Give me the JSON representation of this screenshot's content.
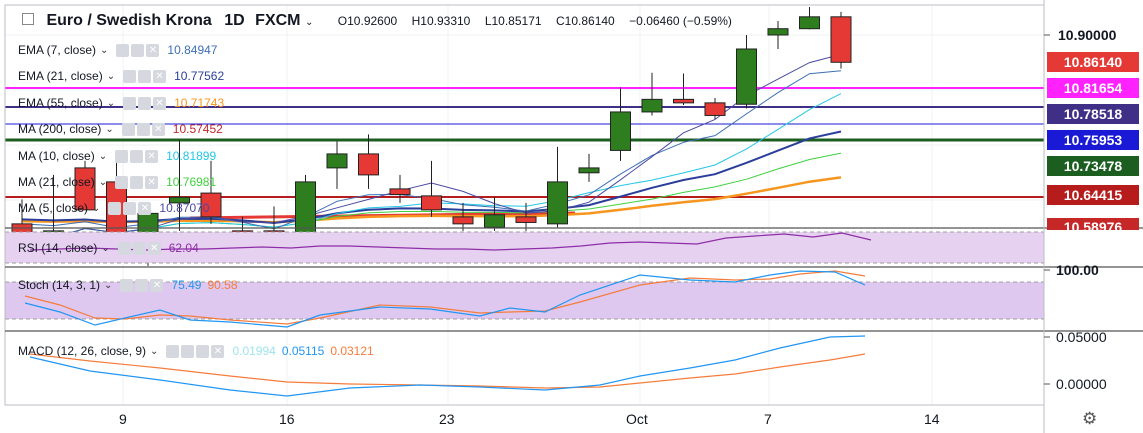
{
  "header": {
    "symbol": "Euro / Swedish Krona",
    "interval": "1D",
    "exchange": "FXCM",
    "open": "O10.92600",
    "high": "H10.93310",
    "low": "L10.85171",
    "close": "C10.86140",
    "change": "−0.06460 (−0.59%)"
  },
  "indicators": [
    {
      "label": "EMA (7, close)",
      "value": "10.84947",
      "color": "#3d6fb5"
    },
    {
      "label": "EMA (21, close)",
      "value": "10.77562",
      "color": "#2b3e9a"
    },
    {
      "label": "EMA (55, close)",
      "value": "10.71743",
      "color": "#f7961e"
    },
    {
      "label": "MA (200, close)",
      "value": "10.57452",
      "color": "#c62828"
    },
    {
      "label": "MA (10, close)",
      "value": "10.81899",
      "color": "#22c7e6"
    },
    {
      "label": "MA (21, close)",
      "value": "10.76981",
      "color": "#3fd13f"
    },
    {
      "label": "MA (5, close)",
      "value": "10.87070",
      "color": "#4a4aa3"
    }
  ],
  "rsi": {
    "label": "RSI (14, close)",
    "value": "62.04",
    "color": "#8e2ea8"
  },
  "stoch": {
    "label": "Stoch (14, 3, 1)",
    "k": "75.49",
    "d": "90.58",
    "k_color": "#2196f3",
    "d_color": "#f57c3c"
  },
  "macd": {
    "label": "MACD (12, 26, close, 9)",
    "hist": "0.01994",
    "macd": "0.05115",
    "signal": "0.03121",
    "hist_color": "#9fe3ee",
    "macd_color": "#2196f3",
    "signal_color": "#f57c3c"
  },
  "price_axis": {
    "ticks": [
      "10.90000"
    ],
    "badges": [
      {
        "value": "10.86140",
        "bg": "#e53935",
        "fg": "#ffffff"
      },
      {
        "value": "10.81654",
        "bg": "#ff22ff",
        "fg": "#ffffff"
      },
      {
        "value": "10.78518",
        "bg": "#3f2f86",
        "fg": "#ffffff"
      },
      {
        "value": "10.75953",
        "bg": "#1a1ad6",
        "fg": "#ffffff"
      },
      {
        "value": "10.73478",
        "bg": "#1b5e20",
        "fg": "#ffffff"
      },
      {
        "value": "10.64415",
        "bg": "#b71c1c",
        "fg": "#ffffff"
      },
      {
        "value": "10.58976",
        "bg": "#c62828",
        "fg": "#ffffff"
      }
    ],
    "stoch_tick": "100.00",
    "macd_ticks": [
      "0.05000",
      "0.00000"
    ]
  },
  "time_axis": [
    "9",
    "16",
    "23",
    "Oct",
    "7",
    "14"
  ],
  "colors": {
    "up": "#2e7d1f",
    "down": "#e53935"
  },
  "candles": [
    {
      "o": 10.63,
      "h": 10.665,
      "l": 10.6,
      "c": 10.6
    },
    {
      "o": 10.6,
      "h": 10.7,
      "l": 10.59,
      "c": 10.62
    },
    {
      "o": 10.71,
      "h": 10.72,
      "l": 10.65,
      "c": 10.65
    },
    {
      "o": 10.69,
      "h": 10.725,
      "l": 10.585,
      "c": 10.6
    },
    {
      "o": 10.575,
      "h": 10.65,
      "l": 10.57,
      "c": 10.645
    },
    {
      "o": 10.66,
      "h": 10.75,
      "l": 10.62,
      "c": 10.668
    },
    {
      "o": 10.674,
      "h": 10.72,
      "l": 10.63,
      "c": 10.64
    },
    {
      "o": 10.62,
      "h": 10.64,
      "l": 10.595,
      "c": 10.61
    },
    {
      "o": 10.62,
      "h": 10.655,
      "l": 10.58,
      "c": 10.595
    },
    {
      "o": 10.59,
      "h": 10.7,
      "l": 10.59,
      "c": 10.69
    },
    {
      "o": 10.71,
      "h": 10.748,
      "l": 10.68,
      "c": 10.73
    },
    {
      "o": 10.73,
      "h": 10.758,
      "l": 10.68,
      "c": 10.7
    },
    {
      "o": 10.68,
      "h": 10.7,
      "l": 10.66,
      "c": 10.672
    },
    {
      "o": 10.67,
      "h": 10.72,
      "l": 10.64,
      "c": 10.65
    },
    {
      "o": 10.64,
      "h": 10.66,
      "l": 10.62,
      "c": 10.63
    },
    {
      "o": 10.625,
      "h": 10.668,
      "l": 10.62,
      "c": 10.643
    },
    {
      "o": 10.64,
      "h": 10.66,
      "l": 10.62,
      "c": 10.632
    },
    {
      "o": 10.63,
      "h": 10.74,
      "l": 10.625,
      "c": 10.69
    },
    {
      "o": 10.703,
      "h": 10.73,
      "l": 10.69,
      "c": 10.71
    },
    {
      "o": 10.735,
      "h": 10.825,
      "l": 10.72,
      "c": 10.79
    },
    {
      "o": 10.79,
      "h": 10.846,
      "l": 10.785,
      "c": 10.808
    },
    {
      "o": 10.808,
      "h": 10.845,
      "l": 10.8,
      "c": 10.803
    },
    {
      "o": 10.803,
      "h": 10.81,
      "l": 10.78,
      "c": 10.785
    },
    {
      "o": 10.801,
      "h": 10.9,
      "l": 10.795,
      "c": 10.88
    },
    {
      "o": 10.9,
      "h": 10.92,
      "l": 10.88,
      "c": 10.909
    },
    {
      "o": 10.909,
      "h": 10.94,
      "l": 10.908,
      "c": 10.926
    },
    {
      "o": 10.926,
      "h": 10.933,
      "l": 10.852,
      "c": 10.861
    }
  ]
}
